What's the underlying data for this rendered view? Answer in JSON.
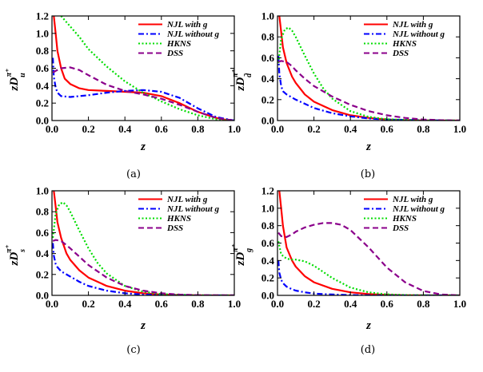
{
  "chart_data": [
    {
      "type": "line",
      "caption": "(a)",
      "xlabel": "z",
      "ylabel": {
        "prefix": "zD",
        "sup": "π⁺",
        "sub": "u"
      },
      "xlim": [
        0,
        1
      ],
      "ylim": [
        0,
        1.2
      ],
      "xticks": [
        "0.0",
        "0.2",
        "0.4",
        "0.6",
        "0.8",
        "1.0"
      ],
      "yticks": [
        "0.0",
        "0.2",
        "0.4",
        "0.6",
        "0.8",
        "1.0",
        "1.2"
      ],
      "legend": "top-right",
      "series": [
        {
          "name": "NJL with g",
          "color": "#ff0000",
          "dash": "solid",
          "x": [
            0.01,
            0.02,
            0.03,
            0.05,
            0.07,
            0.1,
            0.15,
            0.2,
            0.3,
            0.4,
            0.5,
            0.6,
            0.7,
            0.8,
            0.9,
            0.95,
            1.0
          ],
          "y": [
            1.2,
            1.0,
            0.8,
            0.6,
            0.48,
            0.42,
            0.37,
            0.35,
            0.34,
            0.33,
            0.32,
            0.28,
            0.2,
            0.1,
            0.03,
            0.01,
            0.0
          ]
        },
        {
          "name": "NJL without g",
          "color": "#0000ff",
          "dash": "dashdot",
          "x": [
            0.005,
            0.01,
            0.02,
            0.03,
            0.05,
            0.1,
            0.15,
            0.2,
            0.3,
            0.4,
            0.5,
            0.6,
            0.7,
            0.8,
            0.9,
            1.0
          ],
          "y": [
            0.72,
            0.5,
            0.38,
            0.32,
            0.28,
            0.27,
            0.28,
            0.29,
            0.32,
            0.34,
            0.35,
            0.33,
            0.26,
            0.14,
            0.04,
            0.0
          ]
        },
        {
          "name": "HKNS",
          "color": "#00dd00",
          "dash": "dotted",
          "x": [
            0.05,
            0.1,
            0.15,
            0.2,
            0.3,
            0.4,
            0.5,
            0.6,
            0.7,
            0.8,
            0.9,
            1.0
          ],
          "y": [
            1.2,
            1.08,
            0.96,
            0.82,
            0.62,
            0.45,
            0.32,
            0.22,
            0.13,
            0.06,
            0.015,
            0.0
          ]
        },
        {
          "name": "DSS",
          "color": "#8b008b",
          "dash": "dashed",
          "x": [
            0.005,
            0.02,
            0.05,
            0.1,
            0.15,
            0.2,
            0.3,
            0.4,
            0.5,
            0.6,
            0.7,
            0.8,
            0.9,
            1.0
          ],
          "y": [
            0.55,
            0.57,
            0.6,
            0.61,
            0.58,
            0.52,
            0.41,
            0.34,
            0.3,
            0.25,
            0.18,
            0.1,
            0.03,
            0.0
          ]
        }
      ]
    },
    {
      "type": "line",
      "caption": "(b)",
      "xlabel": "z",
      "ylabel": {
        "prefix": "zD",
        "sup": "π⁺",
        "sub": "d̄"
      },
      "xlim": [
        0,
        1
      ],
      "ylim": [
        0,
        1.0
      ],
      "xticks": [
        "0.0",
        "0.2",
        "0.4",
        "0.6",
        "0.8",
        "1.0"
      ],
      "yticks": [
        "0.0",
        "0.2",
        "0.4",
        "0.6",
        "0.8",
        "1.0"
      ],
      "legend": "top-right",
      "series": [
        {
          "name": "NJL with g",
          "color": "#ff0000",
          "dash": "solid",
          "x": [
            0.01,
            0.02,
            0.03,
            0.05,
            0.08,
            0.1,
            0.15,
            0.2,
            0.3,
            0.4,
            0.5,
            0.6,
            0.7,
            0.8,
            1.0
          ],
          "y": [
            1.0,
            0.85,
            0.7,
            0.55,
            0.42,
            0.36,
            0.25,
            0.18,
            0.1,
            0.05,
            0.025,
            0.01,
            0.004,
            0.001,
            0.0
          ]
        },
        {
          "name": "NJL without g",
          "color": "#0000ff",
          "dash": "dashdot",
          "x": [
            0.005,
            0.01,
            0.02,
            0.03,
            0.05,
            0.1,
            0.15,
            0.2,
            0.3,
            0.4,
            0.5,
            0.6,
            0.8,
            1.0
          ],
          "y": [
            0.62,
            0.45,
            0.33,
            0.28,
            0.25,
            0.2,
            0.16,
            0.12,
            0.07,
            0.04,
            0.02,
            0.01,
            0.002,
            0.0
          ]
        },
        {
          "name": "HKNS",
          "color": "#00dd00",
          "dash": "dotted",
          "x": [
            0.005,
            0.02,
            0.04,
            0.06,
            0.08,
            0.1,
            0.15,
            0.2,
            0.25,
            0.3,
            0.4,
            0.5,
            0.6,
            0.8,
            1.0
          ],
          "y": [
            0.55,
            0.78,
            0.87,
            0.89,
            0.86,
            0.8,
            0.62,
            0.45,
            0.31,
            0.21,
            0.09,
            0.035,
            0.012,
            0.001,
            0.0
          ]
        },
        {
          "name": "DSS",
          "color": "#8b008b",
          "dash": "dashed",
          "x": [
            0.005,
            0.02,
            0.05,
            0.08,
            0.1,
            0.15,
            0.2,
            0.3,
            0.4,
            0.5,
            0.6,
            0.7,
            0.8,
            0.9,
            1.0
          ],
          "y": [
            0.56,
            0.57,
            0.56,
            0.52,
            0.48,
            0.4,
            0.33,
            0.23,
            0.15,
            0.09,
            0.05,
            0.025,
            0.01,
            0.003,
            0.0
          ]
        }
      ]
    },
    {
      "type": "line",
      "caption": "(c)",
      "xlabel": "z",
      "ylabel": {
        "prefix": "zD",
        "sup": "π⁺",
        "sub": "s"
      },
      "xlim": [
        0,
        1
      ],
      "ylim": [
        0,
        1.0
      ],
      "xticks": [
        "0.0",
        "0.2",
        "0.4",
        "0.6",
        "0.8",
        "1.0"
      ],
      "yticks": [
        "0.0",
        "0.2",
        "0.4",
        "0.6",
        "0.8",
        "1.0"
      ],
      "legend": "top-right",
      "series": [
        {
          "name": "NJL with g",
          "color": "#ff0000",
          "dash": "solid",
          "x": [
            0.01,
            0.02,
            0.03,
            0.05,
            0.08,
            0.1,
            0.15,
            0.2,
            0.3,
            0.4,
            0.5,
            0.6,
            0.7,
            0.8,
            1.0
          ],
          "y": [
            1.0,
            0.85,
            0.7,
            0.55,
            0.4,
            0.34,
            0.24,
            0.17,
            0.09,
            0.045,
            0.02,
            0.008,
            0.003,
            0.001,
            0.0
          ]
        },
        {
          "name": "NJL without g",
          "color": "#0000ff",
          "dash": "dashdot",
          "x": [
            0.005,
            0.01,
            0.02,
            0.03,
            0.05,
            0.1,
            0.15,
            0.2,
            0.3,
            0.4,
            0.5,
            0.6,
            0.8,
            1.0
          ],
          "y": [
            0.5,
            0.38,
            0.3,
            0.27,
            0.23,
            0.18,
            0.13,
            0.09,
            0.045,
            0.02,
            0.008,
            0.003,
            0.0,
            0.0
          ]
        },
        {
          "name": "HKNS",
          "color": "#00dd00",
          "dash": "dotted",
          "x": [
            0.005,
            0.02,
            0.04,
            0.06,
            0.08,
            0.1,
            0.15,
            0.2,
            0.25,
            0.3,
            0.4,
            0.5,
            0.6,
            0.8,
            1.0
          ],
          "y": [
            0.55,
            0.78,
            0.87,
            0.89,
            0.86,
            0.8,
            0.62,
            0.45,
            0.31,
            0.21,
            0.09,
            0.035,
            0.012,
            0.001,
            0.0
          ]
        },
        {
          "name": "DSS",
          "color": "#8b008b",
          "dash": "dashed",
          "x": [
            0.005,
            0.02,
            0.05,
            0.08,
            0.1,
            0.15,
            0.2,
            0.3,
            0.4,
            0.5,
            0.6,
            0.7,
            0.8,
            1.0
          ],
          "y": [
            0.52,
            0.53,
            0.52,
            0.48,
            0.45,
            0.37,
            0.29,
            0.17,
            0.09,
            0.045,
            0.02,
            0.008,
            0.002,
            0.0
          ]
        }
      ]
    },
    {
      "type": "line",
      "caption": "(d)",
      "xlabel": "z",
      "ylabel": {
        "prefix": "zD",
        "sup": "π⁺",
        "sub": "g"
      },
      "xlim": [
        0,
        1
      ],
      "ylim": [
        0,
        1.2
      ],
      "xticks": [
        "0.0",
        "0.2",
        "0.4",
        "0.6",
        "0.8",
        "1.0"
      ],
      "yticks": [
        "0.0",
        "0.2",
        "0.4",
        "0.6",
        "0.8",
        "1.0",
        "1.2"
      ],
      "legend": "top-right",
      "series": [
        {
          "name": "NJL with g",
          "color": "#ff0000",
          "dash": "solid",
          "x": [
            0.01,
            0.02,
            0.03,
            0.05,
            0.08,
            0.1,
            0.15,
            0.2,
            0.3,
            0.4,
            0.5,
            0.6,
            0.7,
            0.8,
            1.0
          ],
          "y": [
            1.2,
            1.0,
            0.8,
            0.55,
            0.4,
            0.33,
            0.22,
            0.15,
            0.075,
            0.035,
            0.015,
            0.006,
            0.002,
            0.0,
            0.0
          ]
        },
        {
          "name": "NJL without g",
          "color": "#0000ff",
          "dash": "dashdot",
          "x": [
            0.005,
            0.01,
            0.02,
            0.03,
            0.05,
            0.08,
            0.1,
            0.15,
            0.2,
            0.3,
            0.4,
            0.5,
            0.6,
            0.8,
            1.0
          ],
          "y": [
            0.4,
            0.26,
            0.18,
            0.14,
            0.1,
            0.07,
            0.055,
            0.035,
            0.02,
            0.01,
            0.004,
            0.001,
            0.0,
            0.0,
            0.0
          ]
        },
        {
          "name": "HKNS",
          "color": "#00dd00",
          "dash": "dotted",
          "x": [
            0.005,
            0.02,
            0.05,
            0.08,
            0.1,
            0.15,
            0.2,
            0.25,
            0.3,
            0.4,
            0.5,
            0.6,
            0.7,
            0.8,
            1.0
          ],
          "y": [
            0.62,
            0.47,
            0.42,
            0.41,
            0.41,
            0.39,
            0.34,
            0.27,
            0.2,
            0.09,
            0.035,
            0.012,
            0.004,
            0.001,
            0.0
          ]
        },
        {
          "name": "DSS",
          "color": "#8b008b",
          "dash": "dashed",
          "x": [
            0.005,
            0.02,
            0.05,
            0.08,
            0.1,
            0.15,
            0.2,
            0.25,
            0.3,
            0.35,
            0.4,
            0.5,
            0.6,
            0.7,
            0.8,
            0.9,
            1.0
          ],
          "y": [
            0.72,
            0.68,
            0.67,
            0.7,
            0.73,
            0.78,
            0.81,
            0.83,
            0.83,
            0.81,
            0.75,
            0.55,
            0.32,
            0.15,
            0.05,
            0.01,
            0.0
          ]
        }
      ]
    }
  ]
}
